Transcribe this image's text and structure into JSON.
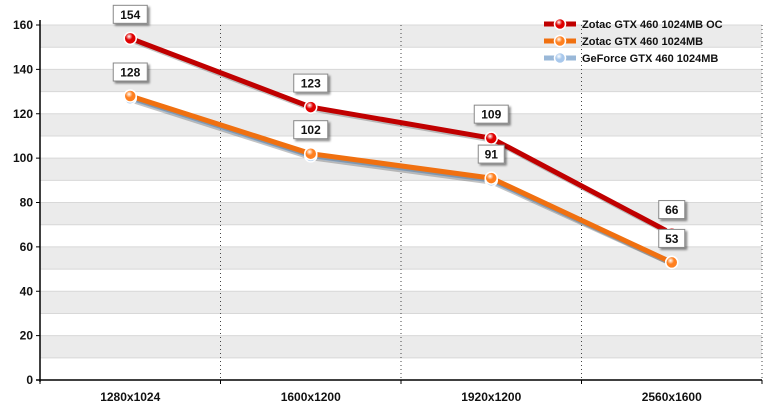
{
  "chart_data": {
    "type": "line",
    "categories": [
      "1280x1024",
      "1600x1200",
      "1920x1200",
      "2560x1600"
    ],
    "ylim": [
      0,
      160
    ],
    "yticks": [
      0,
      20,
      40,
      60,
      80,
      100,
      120,
      140,
      160
    ],
    "grid": true,
    "legend_position": "top-right",
    "series": [
      {
        "name": "Zotac GTX 460 1024MB OC",
        "values": [
          154,
          123,
          109,
          66
        ],
        "color": "#c00000",
        "marker": "#e00000",
        "labels_shown": [
          true,
          true,
          true,
          true
        ]
      },
      {
        "name": "Zotac GTX 460 1024MB",
        "values": [
          128,
          102,
          91,
          53
        ],
        "color": "#f07010",
        "marker": "#ff8020",
        "labels_shown": [
          true,
          true,
          true,
          true
        ]
      },
      {
        "name": "GeForce GTX 460 1024MB",
        "values": [
          127,
          101,
          90,
          53
        ],
        "color": "#9ab8d8",
        "marker": "#a8c8ec",
        "labels_shown": [
          false,
          false,
          false,
          false
        ]
      }
    ]
  }
}
